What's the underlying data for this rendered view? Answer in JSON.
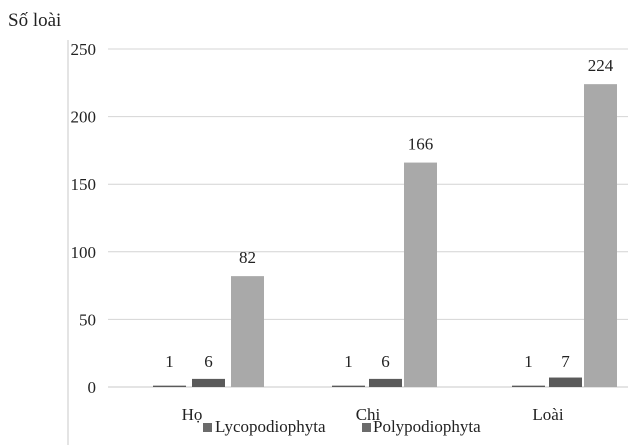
{
  "chart_data": {
    "type": "bar",
    "ylabel": "Số loài",
    "ylim": [
      0,
      250
    ],
    "yticks": [
      0,
      50,
      100,
      150,
      200,
      250
    ],
    "grid": true,
    "categories": [
      "Họ",
      "Chi",
      "Loài"
    ],
    "series": [
      {
        "values": [
          1,
          1,
          1
        ],
        "color": "#5a5a5a"
      },
      {
        "values": [
          6,
          6,
          7
        ],
        "color": "#5a5a5a"
      },
      {
        "values": [
          82,
          166,
          224
        ],
        "color": "#a9a9a9"
      }
    ],
    "legend": {
      "placement": "bottom",
      "items": [
        {
          "label": "Lycopodiophyta",
          "color": "#6b6b6b"
        },
        {
          "label": "Polypodiophyta",
          "color": "#6b6b6b"
        }
      ]
    }
  }
}
